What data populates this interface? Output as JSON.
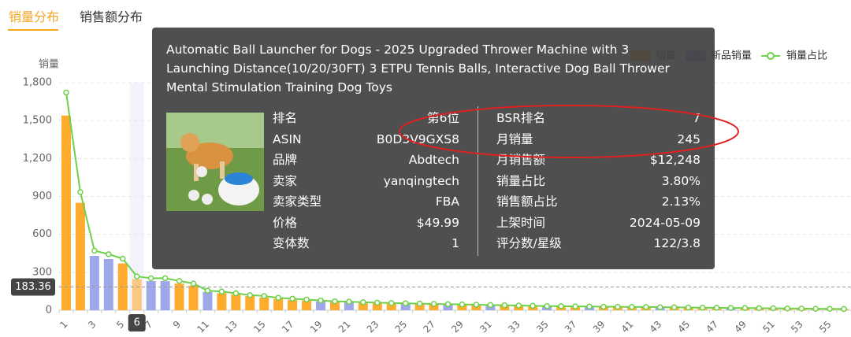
{
  "tabs": [
    "销量分布",
    "销售额分布"
  ],
  "chart_data": {
    "type": "bar",
    "y_label": "销量",
    "categories": [
      1,
      null,
      3,
      null,
      5,
      null,
      7,
      null,
      9,
      null,
      11,
      null,
      13,
      null,
      15,
      null,
      17,
      null,
      19,
      null,
      21,
      null,
      23,
      null,
      25,
      null,
      27,
      null,
      29,
      null,
      31,
      null,
      33,
      null,
      35,
      null,
      37,
      null,
      39,
      null,
      41,
      null,
      43,
      null,
      45,
      null,
      47,
      null,
      49,
      null,
      51,
      null,
      53,
      null,
      55,
      null
    ],
    "series": [
      {
        "name": "销量",
        "color": "#ffab2e",
        "values": [
          1540,
          850,
          null,
          null,
          370,
          245,
          null,
          null,
          210,
          195,
          null,
          135,
          125,
          112,
          100,
          90,
          82,
          76,
          null,
          65,
          null,
          58,
          55,
          52,
          null,
          48,
          46,
          null,
          42,
          40,
          null,
          36,
          34,
          32,
          null,
          29,
          28,
          null,
          26,
          25,
          24,
          23,
          null,
          21,
          20,
          19,
          18,
          null,
          16,
          15,
          14,
          13,
          12,
          11,
          10,
          9
        ]
      },
      {
        "name": "新品销量",
        "color": "#9ea7ea",
        "values": [
          null,
          null,
          430,
          405,
          null,
          null,
          230,
          230,
          null,
          null,
          145,
          null,
          null,
          null,
          null,
          null,
          null,
          null,
          70,
          null,
          62,
          null,
          null,
          null,
          50,
          null,
          null,
          44,
          null,
          null,
          38,
          null,
          null,
          null,
          30,
          null,
          null,
          27,
          null,
          null,
          null,
          null,
          22,
          null,
          null,
          null,
          null,
          17,
          null,
          null,
          null,
          null,
          null,
          null,
          null,
          null
        ]
      },
      {
        "name": "销量占比",
        "color": "#6fd04a",
        "axis": "y2",
        "type": "line",
        "values": [
          24.5,
          13.3,
          6.7,
          6.3,
          5.8,
          3.8,
          3.6,
          3.6,
          3.3,
          3.0,
          2.2,
          2.1,
          1.9,
          1.7,
          1.6,
          1.4,
          1.3,
          1.2,
          1.1,
          1.0,
          0.96,
          0.9,
          0.85,
          0.81,
          0.78,
          0.74,
          0.71,
          0.68,
          0.65,
          0.62,
          0.59,
          0.56,
          0.53,
          0.5,
          0.47,
          0.45,
          0.43,
          0.42,
          0.4,
          0.39,
          0.37,
          0.36,
          0.34,
          0.33,
          0.31,
          0.29,
          0.28,
          0.26,
          0.25,
          0.23,
          0.22,
          0.2,
          0.19,
          0.17,
          0.16,
          0.14
        ]
      }
    ],
    "ylim": [
      0,
      1800
    ],
    "yticks": [
      0,
      300,
      600,
      900,
      {
        "value": 1200,
        "label": "1,200"
      },
      {
        "value": 1500,
        "label": "1,500"
      },
      {
        "value": 1800,
        "label": "1,800"
      }
    ],
    "y2lim": [
      0,
      25.6
    ],
    "grid": true,
    "legend": "top-right",
    "pointer": {
      "x": 6,
      "y": 183.36
    }
  },
  "tooltip": {
    "title": "Automatic Ball Launcher for Dogs - 2025 Upgraded Thrower Machine with 3 Launching Distance(10/20/30FT) 3 ETPU Tennis Balls, Interactive Dog Ball Thrower Mental Stimulation Training Dog Toys",
    "left": [
      [
        "排名",
        "第6位"
      ],
      [
        "ASIN",
        "B0D3V9GXS8"
      ],
      [
        "品牌",
        "Abdtech"
      ],
      [
        "卖家",
        "yanqingtech"
      ],
      [
        "卖家类型",
        "FBA"
      ],
      [
        "价格",
        "$49.99"
      ],
      [
        "变体数",
        "1"
      ]
    ],
    "right": [
      [
        "BSR排名",
        "7"
      ],
      [
        "月销量",
        "245"
      ],
      [
        "月销售额",
        "$12,248"
      ],
      [
        "销量占比",
        "3.80%"
      ],
      [
        "销售额占比",
        "2.13%"
      ],
      [
        "上架时间",
        "2024-05-09"
      ],
      [
        "评分数/星级",
        "122/3.8"
      ]
    ]
  }
}
